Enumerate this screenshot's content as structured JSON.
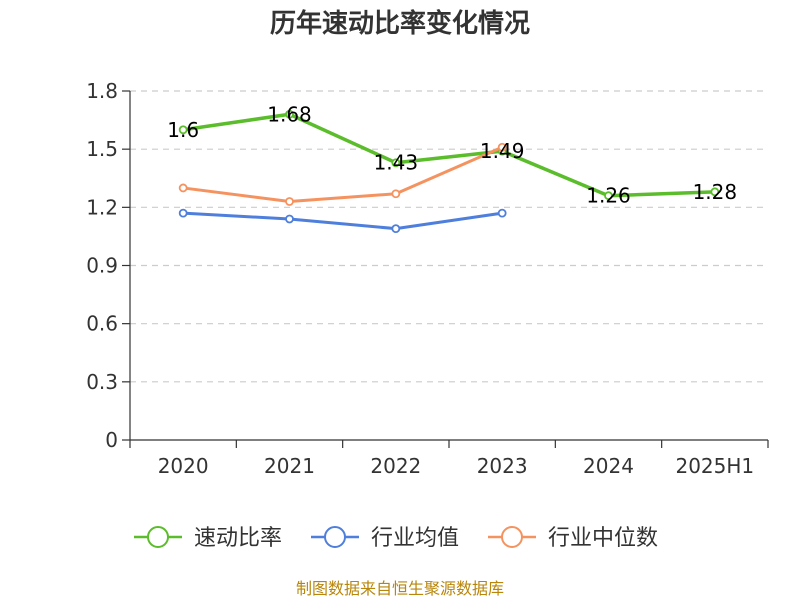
{
  "chart_data": {
    "type": "line",
    "title": "历年速动比率变化情况",
    "categories": [
      "2020",
      "2021",
      "2022",
      "2023",
      "2024",
      "2025H1"
    ],
    "ylim": [
      0,
      1.8
    ],
    "yticks": [
      "0",
      "0.3",
      "0.6",
      "0.9",
      "1.2",
      "1.5",
      "1.8"
    ],
    "grid": true,
    "legend_position": "bottom",
    "series": [
      {
        "name": "速动比率",
        "color": "#5bbd2b",
        "values": [
          1.6,
          1.68,
          1.43,
          1.49,
          1.26,
          1.28
        ],
        "labels": [
          "1.6",
          "1.68",
          "1.43",
          "1.49",
          "1.26",
          "1.28"
        ]
      },
      {
        "name": "行业均值",
        "color": "#4f7fdc",
        "values": [
          1.17,
          1.14,
          1.09,
          1.17,
          null,
          null
        ]
      },
      {
        "name": "行业中位数",
        "color": "#f59360",
        "values": [
          1.3,
          1.23,
          1.27,
          1.51,
          null,
          null
        ]
      }
    ]
  },
  "source": "制图数据来自恒生聚源数据库"
}
